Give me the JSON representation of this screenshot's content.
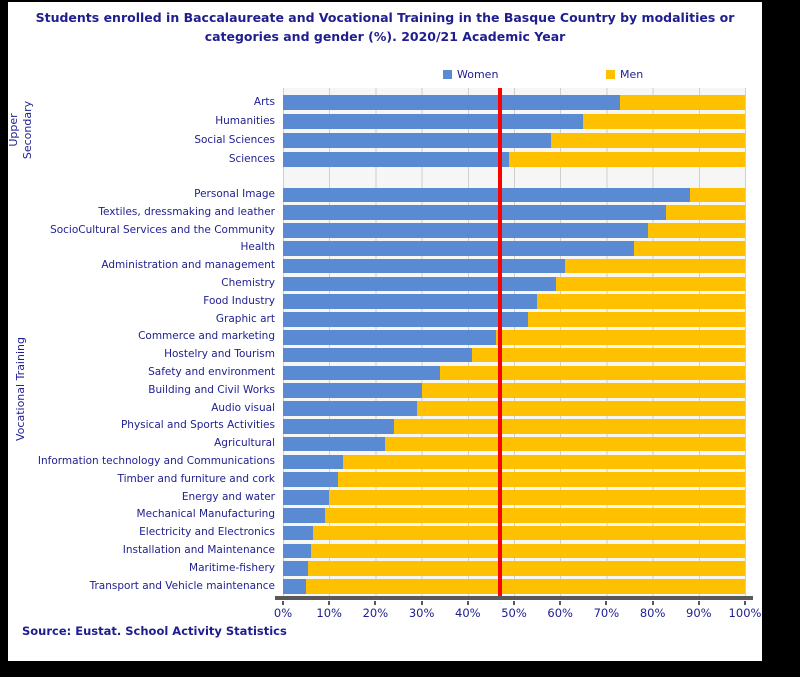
{
  "page": {
    "title_line1": "Students enrolled in Baccalaureate and Vocational Training in the Basque Country by modalities or",
    "title_line2": "categories and gender (%). 2020/21 Academic Year",
    "source": "Source: Eustat. School Activity Statistics"
  },
  "legend": {
    "women_label": "Women",
    "men_label": "Men"
  },
  "colors": {
    "women": "#5A8AD2",
    "men": "#FFC000",
    "reference_line": "#FF0000",
    "text": "#1E1E8F",
    "axis": "#595959",
    "grid": "#CFCFCF",
    "plot_bg": "#F6F6F6",
    "canvas_bg": "#FFFFFF",
    "page_bg": "#000000"
  },
  "chart_data": {
    "type": "bar",
    "orientation": "horizontal",
    "stacked": true,
    "unit": "%",
    "title": "Students enrolled in Baccalaureate and Vocational Training in the Basque Country by modalities or categories and gender (%). 2020/21 Academic Year",
    "xlabel": "",
    "ylabel": "",
    "xlim": [
      0,
      100
    ],
    "x_ticks": [
      "0%",
      "10%",
      "20%",
      "30%",
      "40%",
      "50%",
      "60%",
      "70%",
      "80%",
      "90%",
      "100%"
    ],
    "grid": true,
    "legend_entries": [
      "Women",
      "Men"
    ],
    "legend_position": "top",
    "reference_line_pct": 47,
    "groups": [
      {
        "label": "Upper Secondary",
        "rows": [
          {
            "category": "Arts",
            "women": 73,
            "men": 27
          },
          {
            "category": "Humanities",
            "women": 65,
            "men": 35
          },
          {
            "category": "Social Sciences",
            "women": 58,
            "men": 42
          },
          {
            "category": "Sciences",
            "women": 49,
            "men": 51
          }
        ]
      },
      {
        "label": "Vocational Training",
        "rows": [
          {
            "category": "Personal Image",
            "women": 88,
            "men": 12
          },
          {
            "category": "Textiles, dressmaking and leather",
            "women": 83,
            "men": 17
          },
          {
            "category": "SocioCultural Services and the Community",
            "women": 79,
            "men": 21
          },
          {
            "category": "Health",
            "women": 76,
            "men": 24
          },
          {
            "category": "Administration and management",
            "women": 61,
            "men": 39
          },
          {
            "category": "Chemistry",
            "women": 59,
            "men": 41
          },
          {
            "category": "Food Industry",
            "women": 55,
            "men": 45
          },
          {
            "category": "Graphic art",
            "women": 53,
            "men": 47
          },
          {
            "category": "Commerce and marketing",
            "women": 46,
            "men": 54
          },
          {
            "category": "Hostelry and Tourism",
            "women": 41,
            "men": 59
          },
          {
            "category": "Safety and environment",
            "women": 34,
            "men": 66
          },
          {
            "category": "Building and Civil Works",
            "women": 30,
            "men": 70
          },
          {
            "category": "Audio visual",
            "women": 29,
            "men": 71
          },
          {
            "category": "Physical and Sports Activities",
            "women": 24,
            "men": 76
          },
          {
            "category": "Agricultural",
            "women": 22,
            "men": 78
          },
          {
            "category": "Information technology and Communications",
            "women": 13,
            "men": 87
          },
          {
            "category": "Timber and furniture and cork",
            "women": 12,
            "men": 88
          },
          {
            "category": "Energy and water",
            "women": 10,
            "men": 90
          },
          {
            "category": "Mechanical Manufacturing",
            "women": 9,
            "men": 91
          },
          {
            "category": "Electricity and Electronics",
            "women": 6.5,
            "men": 93.5
          },
          {
            "category": "Installation and Maintenance",
            "women": 6,
            "men": 94
          },
          {
            "category": "Maritime-fishery",
            "women": 5.5,
            "men": 94.5
          },
          {
            "category": "Transport and Vehicle maintenance",
            "women": 5,
            "men": 95
          }
        ]
      }
    ]
  }
}
